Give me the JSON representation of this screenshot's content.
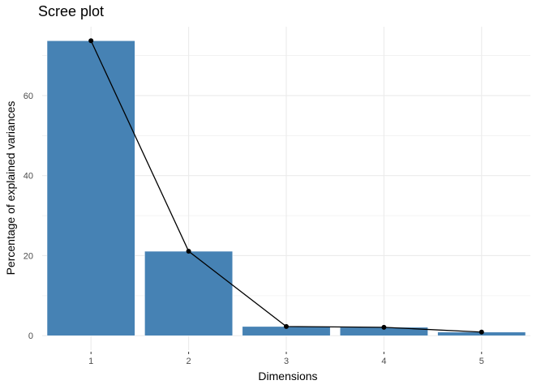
{
  "chart_data": {
    "type": "bar",
    "title": "Scree plot",
    "xlabel": "Dimensions",
    "ylabel": "Percentage of explained variances",
    "categories": [
      "1",
      "2",
      "3",
      "4",
      "5"
    ],
    "values": [
      73.7,
      21.1,
      2.3,
      2.1,
      0.9
    ],
    "overlay": "line-with-points",
    "ylim": [
      -3.6,
      77.2
    ],
    "yticks": [
      0,
      20,
      40,
      60
    ],
    "grid": true,
    "colors": {
      "bar": "#4682B4",
      "line": "#000000",
      "grid": "#ebebeb"
    }
  }
}
